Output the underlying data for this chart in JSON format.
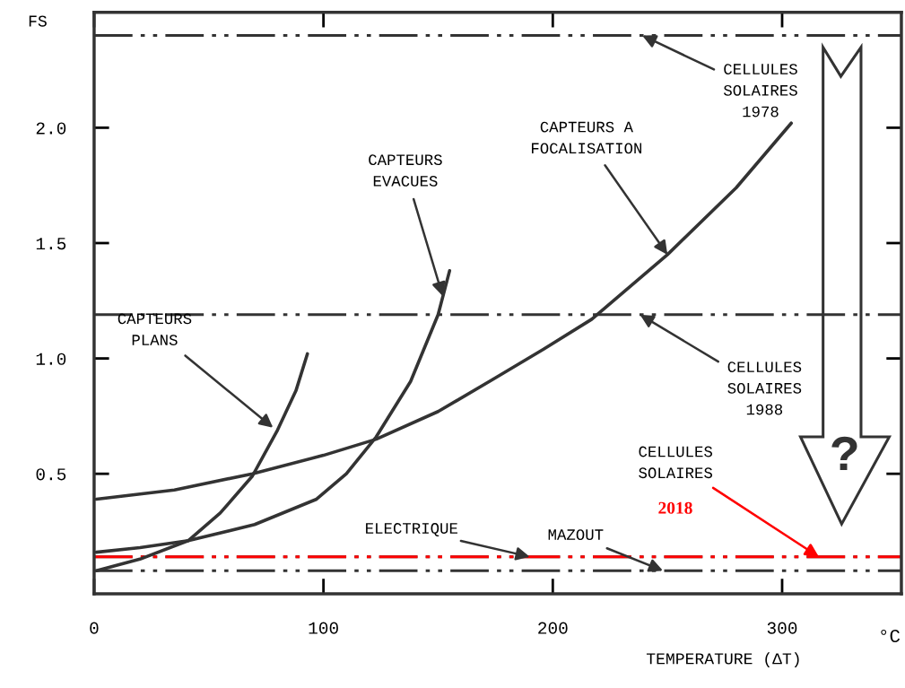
{
  "chart_data": {
    "type": "line",
    "xlabel": "TEMPERATURE (ΔT)",
    "ylabel": "FS",
    "xlim": [
      0,
      352
    ],
    "ylim": [
      -0.02,
      2.5
    ],
    "xticks": [
      0,
      100,
      200,
      300
    ],
    "yticks": [
      {
        "value": 0.5,
        "label": "0.5"
      },
      {
        "value": 1.0,
        "label": "1.0"
      },
      {
        "value": 1.5,
        "label": "1.5"
      },
      {
        "value": 2.0,
        "label": "2.0"
      }
    ],
    "grid": false,
    "marker": "none",
    "line_style": "solid",
    "series": [
      {
        "color": "#333333",
        "x": [
          1,
          20,
          41,
          55,
          69,
          80,
          88,
          93
        ],
        "values": [
          0.08,
          0.13,
          0.21,
          0.33,
          0.49,
          0.69,
          0.86,
          1.02
        ]
      },
      {
        "color": "#333333",
        "x": [
          1,
          20,
          41,
          70,
          97,
          110,
          123,
          138,
          150,
          155
        ],
        "values": [
          0.16,
          0.18,
          0.21,
          0.28,
          0.39,
          0.5,
          0.66,
          0.9,
          1.19,
          1.38
        ]
      },
      {
        "color": "#333333",
        "x": [
          1,
          35,
          69,
          100,
          123,
          150,
          174,
          196,
          217,
          250,
          280,
          304
        ],
        "values": [
          0.39,
          0.43,
          0.5,
          0.58,
          0.65,
          0.77,
          0.91,
          1.04,
          1.17,
          1.45,
          1.74,
          2.02
        ]
      }
    ],
    "ref_lines": [
      {
        "axis": "y",
        "value": 2.4,
        "color": "#333333",
        "line_style": "dashed"
      },
      {
        "axis": "y",
        "value": 1.19,
        "color": "#333333",
        "line_style": "dashed"
      },
      {
        "axis": "y",
        "value": 0.14,
        "color": "#333333",
        "line_style": "dashed"
      },
      {
        "axis": "y",
        "value": 0.08,
        "color": "#333333",
        "line_style": "dashed"
      },
      {
        "axis": "y",
        "value": 0.14,
        "color": "#ff0000",
        "line_style": "dashed"
      }
    ],
    "annotations": [
      {
        "text": "CAPTEURS\nPLANS",
        "x": 78,
        "y": 0.7
      },
      {
        "text": "CAPTEURS\nEVACUES",
        "x": 152,
        "y": 1.27
      },
      {
        "text": "CAPTEURS A\nFOCALISATION",
        "x": 250,
        "y": 1.45
      },
      {
        "text": "CELLULES\nSOLAIRES\n1978",
        "x": 239,
        "y": 2.4
      },
      {
        "text": "CELLULES\nSOLAIRES\n1988",
        "x": 238,
        "y": 1.19
      },
      {
        "text": "ELECTRIQUE",
        "x": 190,
        "y": 0.14
      },
      {
        "text": "MAZOUT",
        "x": 248,
        "y": 0.08
      },
      {
        "text": "CELLULES\nSOLAIRES",
        "x": 316,
        "y": 0.14
      },
      "?",
      "°C",
      "2018"
    ]
  }
}
